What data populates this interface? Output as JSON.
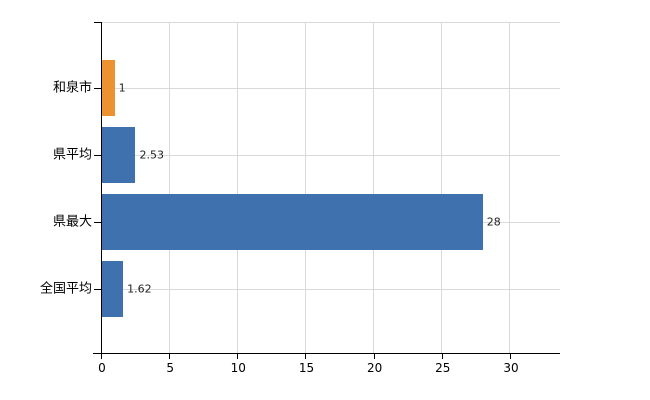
{
  "chart_data": {
    "type": "bar",
    "orientation": "horizontal",
    "title": "",
    "xlabel": "",
    "ylabel": "",
    "categories": [
      "和泉市",
      "県平均",
      "県最大",
      "全国平均"
    ],
    "values": [
      1,
      2.53,
      28,
      1.62
    ],
    "value_labels": [
      "1",
      "2.53",
      "28",
      "1.62"
    ],
    "bar_colors": [
      "#ED9231",
      "#3E71AE",
      "#3E71AE",
      "#3E71AE"
    ],
    "xlim": [
      0,
      33.67
    ],
    "xticks": [
      0,
      5,
      10,
      15,
      20,
      25,
      30
    ],
    "xtick_labels": [
      "0",
      "5",
      "10",
      "15",
      "20",
      "25",
      "30"
    ],
    "grid": true,
    "legend": false
  },
  "colors": {
    "background": "#ffffff",
    "gridline": "#d9d9d9",
    "axis": "#000000",
    "text": "#000000",
    "highlight_bar": "#ED9231",
    "default_bar": "#3E71AE"
  }
}
